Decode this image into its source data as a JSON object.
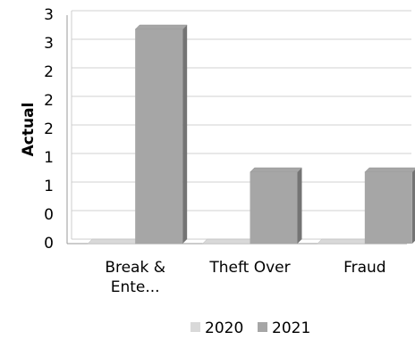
{
  "chart_data": {
    "type": "bar3d",
    "y_axis_label": "Actual",
    "categories": [
      "Break & Ente...",
      "Theft Over",
      "Fraud"
    ],
    "series": [
      {
        "name": "2020",
        "color": "#d9d9d9",
        "values": [
          0,
          0,
          0
        ]
      },
      {
        "name": "2021",
        "color": "#a6a6a6",
        "values": [
          3,
          1,
          1
        ]
      }
    ],
    "ylim": [
      0,
      3.2
    ],
    "yticks": [
      0,
      {
        "value": 0.4,
        "label": "0"
      },
      {
        "value": 0.8,
        "label": "1"
      },
      {
        "value": 1.2,
        "label": "1"
      },
      {
        "value": 1.6,
        "label": "2"
      },
      2,
      {
        "value": 2.4,
        "label": "2"
      },
      {
        "value": 2.8,
        "label": "3"
      },
      {
        "value": 3.2,
        "label": "3"
      }
    ],
    "grid": true,
    "legend": "bottom"
  }
}
